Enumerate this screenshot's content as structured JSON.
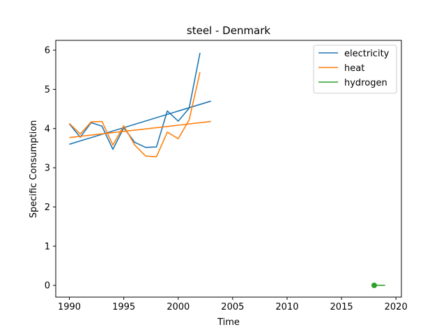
{
  "chart_data": {
    "type": "line",
    "title": "steel - Denmark",
    "xlabel": "Time",
    "ylabel": "Specific Consumption",
    "xlim": [
      1988.75,
      2020.5
    ],
    "ylim": [
      -0.3,
      6.25
    ],
    "xticks": [
      1990,
      1995,
      2000,
      2005,
      2010,
      2015,
      2020
    ],
    "yticks": [
      0,
      1,
      2,
      3,
      4,
      5,
      6
    ],
    "grid": false,
    "legend_position": "top-right",
    "series": [
      {
        "name": "electricity",
        "color": "#1f77b4",
        "x": [
          1990,
          1991,
          1992,
          1993,
          1994,
          1995,
          1996,
          1997,
          1998,
          1999,
          2000,
          2001,
          2002
        ],
        "y": [
          4.12,
          3.78,
          4.15,
          4.06,
          3.47,
          4.02,
          3.65,
          3.52,
          3.53,
          4.45,
          4.19,
          4.52,
          5.93
        ],
        "trend": {
          "x": [
            1990,
            2003
          ],
          "y": [
            3.6,
            4.7
          ]
        }
      },
      {
        "name": "heat",
        "color": "#ff7f0e",
        "x": [
          1990,
          1991,
          1992,
          1993,
          1994,
          1995,
          1996,
          1997,
          1998,
          1999,
          2000,
          2001,
          2002
        ],
        "y": [
          4.13,
          3.86,
          4.17,
          4.18,
          3.58,
          4.07,
          3.58,
          3.3,
          3.28,
          3.91,
          3.74,
          4.22,
          5.44
        ],
        "trend": {
          "x": [
            1990,
            2003
          ],
          "y": [
            3.77,
            4.18
          ]
        }
      },
      {
        "name": "hydrogen",
        "color": "#2ca02c",
        "x": [
          2018,
          2019
        ],
        "y": [
          0,
          0
        ],
        "marker_points": [
          {
            "x": 2018,
            "y": 0
          }
        ]
      }
    ]
  }
}
